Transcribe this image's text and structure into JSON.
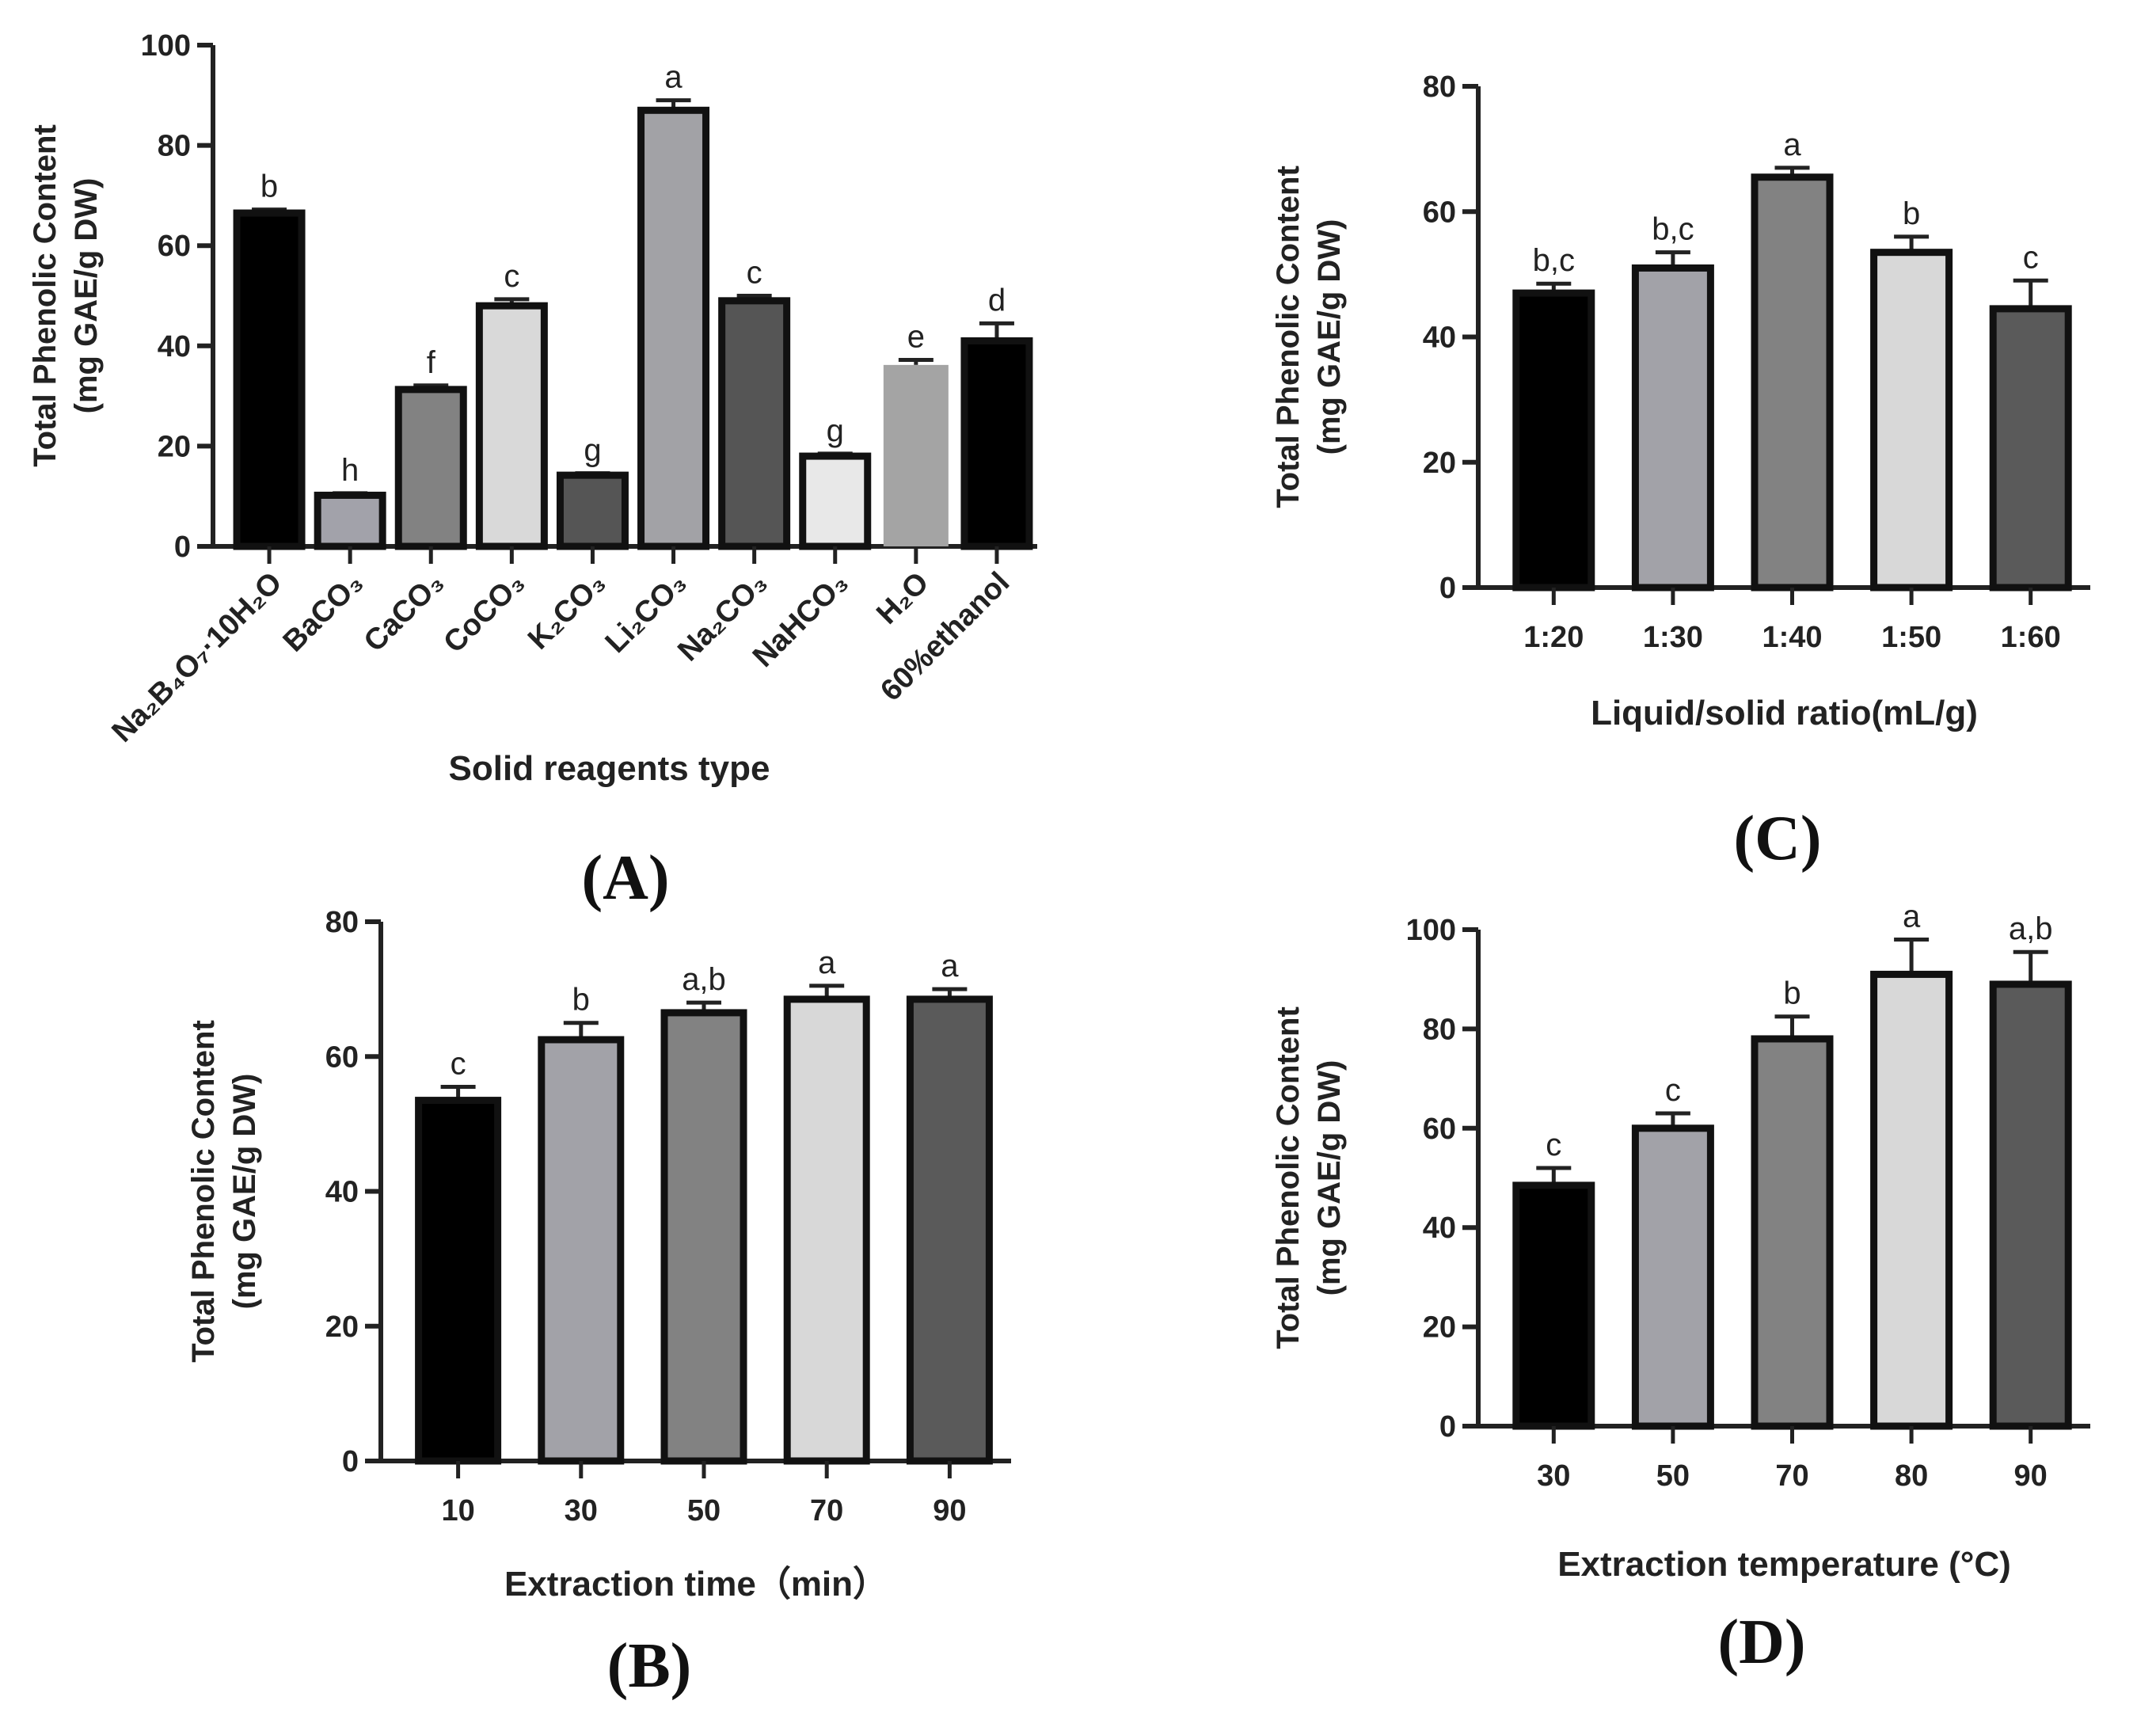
{
  "chart_data": [
    {
      "id": "A",
      "type": "bar",
      "panel_label": "(A)",
      "ylabel_line1": "Total Phenolic Content",
      "ylabel_line2": "(mg GAE/g DW)",
      "xlabel": "Solid reagents type",
      "ylim": [
        0,
        100
      ],
      "yticks": [
        0,
        20,
        40,
        60,
        80,
        100
      ],
      "categories": [
        "Na₂B₄O₇·10H₂O",
        "BaCO₃",
        "CaCO₃",
        "CoCO₃",
        "K₂CO₃",
        "Li₂CO₃",
        "Na₂CO₃",
        "NaHCO₃",
        "H₂O",
        "60%ethanol"
      ],
      "values": [
        66.5,
        10.2,
        31.3,
        48,
        14.2,
        87,
        49,
        18,
        36.2,
        41
      ],
      "errors": [
        0.7,
        0.4,
        0.8,
        1.3,
        0.4,
        2.0,
        1.0,
        0.5,
        1.0,
        3.5
      ],
      "significance": [
        "b",
        "h",
        "f",
        "c",
        "g",
        "a",
        "c",
        "g",
        "e",
        "d"
      ],
      "colors": [
        "#000000",
        "#a2a2aa",
        "#828282",
        "#d9d9d9",
        "#555555",
        "#a2a2a6",
        "#555555",
        "#e8e8e8",
        "#a4a4a4",
        "#000000"
      ]
    },
    {
      "id": "C",
      "type": "bar",
      "panel_label": "(C)",
      "ylabel_line1": "Total Phenolic Content",
      "ylabel_line2": "(mg GAE/g DW)",
      "xlabel": "Liquid/solid ratio(mL/g)",
      "ylim": [
        0,
        80
      ],
      "yticks": [
        0,
        20,
        40,
        60,
        80
      ],
      "categories": [
        "1:20",
        "1:30",
        "1:40",
        "1:50",
        "1:60"
      ],
      "values": [
        47,
        51,
        65.5,
        53.5,
        44.5
      ],
      "errors": [
        1.5,
        2.5,
        1.5,
        2.5,
        4.5
      ],
      "significance": [
        "b,c",
        "b,c",
        "a",
        "b",
        "c"
      ],
      "colors": [
        "#000000",
        "#a2a2a8",
        "#828282",
        "#d8d8d8",
        "#5a5a5a"
      ]
    },
    {
      "id": "B",
      "type": "bar",
      "panel_label": "(B)",
      "ylabel_line1": "Total Phenolic Content",
      "ylabel_line2": "(mg GAE/g DW)",
      "xlabel": "Extraction time（min）",
      "ylim": [
        0,
        80
      ],
      "yticks": [
        0,
        20,
        40,
        60,
        80
      ],
      "categories": [
        "10",
        "30",
        "50",
        "70",
        "90"
      ],
      "values": [
        53.5,
        62.5,
        66.5,
        68.5,
        68.5
      ],
      "errors": [
        2,
        2.5,
        1.5,
        2,
        1.5
      ],
      "significance": [
        "c",
        "b",
        "a,b",
        "a",
        "a"
      ],
      "colors": [
        "#000000",
        "#a2a2a8",
        "#828282",
        "#d8d8d8",
        "#5a5a5a"
      ]
    },
    {
      "id": "D",
      "type": "bar",
      "panel_label": "(D)",
      "ylabel_line1": "Total Phenolic Content",
      "ylabel_line2": "(mg GAE/g DW)",
      "xlabel": "Extraction temperature (°C)",
      "ylim": [
        0,
        100
      ],
      "yticks": [
        0,
        20,
        40,
        60,
        80,
        100
      ],
      "categories": [
        "30",
        "50",
        "70",
        "80",
        "90"
      ],
      "values": [
        48.5,
        60,
        78,
        91,
        89
      ],
      "errors": [
        3.5,
        3,
        4.5,
        7,
        6.5
      ],
      "significance": [
        "c",
        "c",
        "b",
        "a",
        "a,b"
      ],
      "colors": [
        "#000000",
        "#a2a2a8",
        "#828282",
        "#d8d8d8",
        "#5a5a5a"
      ]
    }
  ]
}
